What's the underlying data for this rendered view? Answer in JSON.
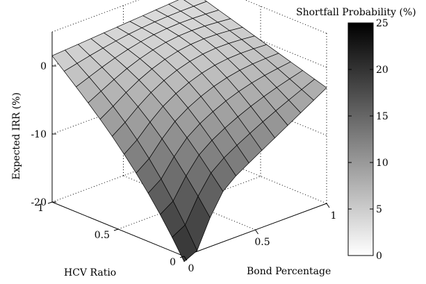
{
  "chart_data": {
    "type": "surface",
    "xlabel": "Bond Percentage",
    "ylabel": "HCV Ratio",
    "zlabel": "Expected IRR (%)",
    "x_ticks": [
      "0",
      "0.5",
      "1"
    ],
    "y_ticks": [
      "0",
      "0.5",
      "1"
    ],
    "z_ticks": [
      "-20",
      "-10",
      "0"
    ],
    "xlim": [
      0,
      1
    ],
    "ylim": [
      0,
      1
    ],
    "zlim": [
      -20,
      5
    ],
    "grid": true,
    "colorbar": {
      "title": "Shortfall Probability (%)",
      "ticks": [
        "0",
        "5",
        "10",
        "15",
        "20",
        "25"
      ],
      "range": [
        0,
        25
      ],
      "colormap": "gray-reversed"
    },
    "grid_resolution": [
      12,
      12
    ],
    "surface": {
      "x_grid": [
        0,
        0.0909,
        0.1818,
        0.2727,
        0.3636,
        0.4545,
        0.5455,
        0.6364,
        0.7273,
        0.8182,
        0.9091,
        1
      ],
      "y_grid": [
        0,
        0.0909,
        0.1818,
        0.2727,
        0.3636,
        0.4545,
        0.5455,
        0.6364,
        0.7273,
        0.8182,
        0.9091,
        1
      ],
      "corner_values": {
        "x0_y0": -15.5,
        "x1_y0": -3.0,
        "x0_y1": 1.5,
        "x1_y1": 3.0
      },
      "peak_value": 5.5
    },
    "colors": {
      "surface_light": "#f4f4f4",
      "surface_dark": "#3a3a3a",
      "edge": "#000000"
    }
  }
}
